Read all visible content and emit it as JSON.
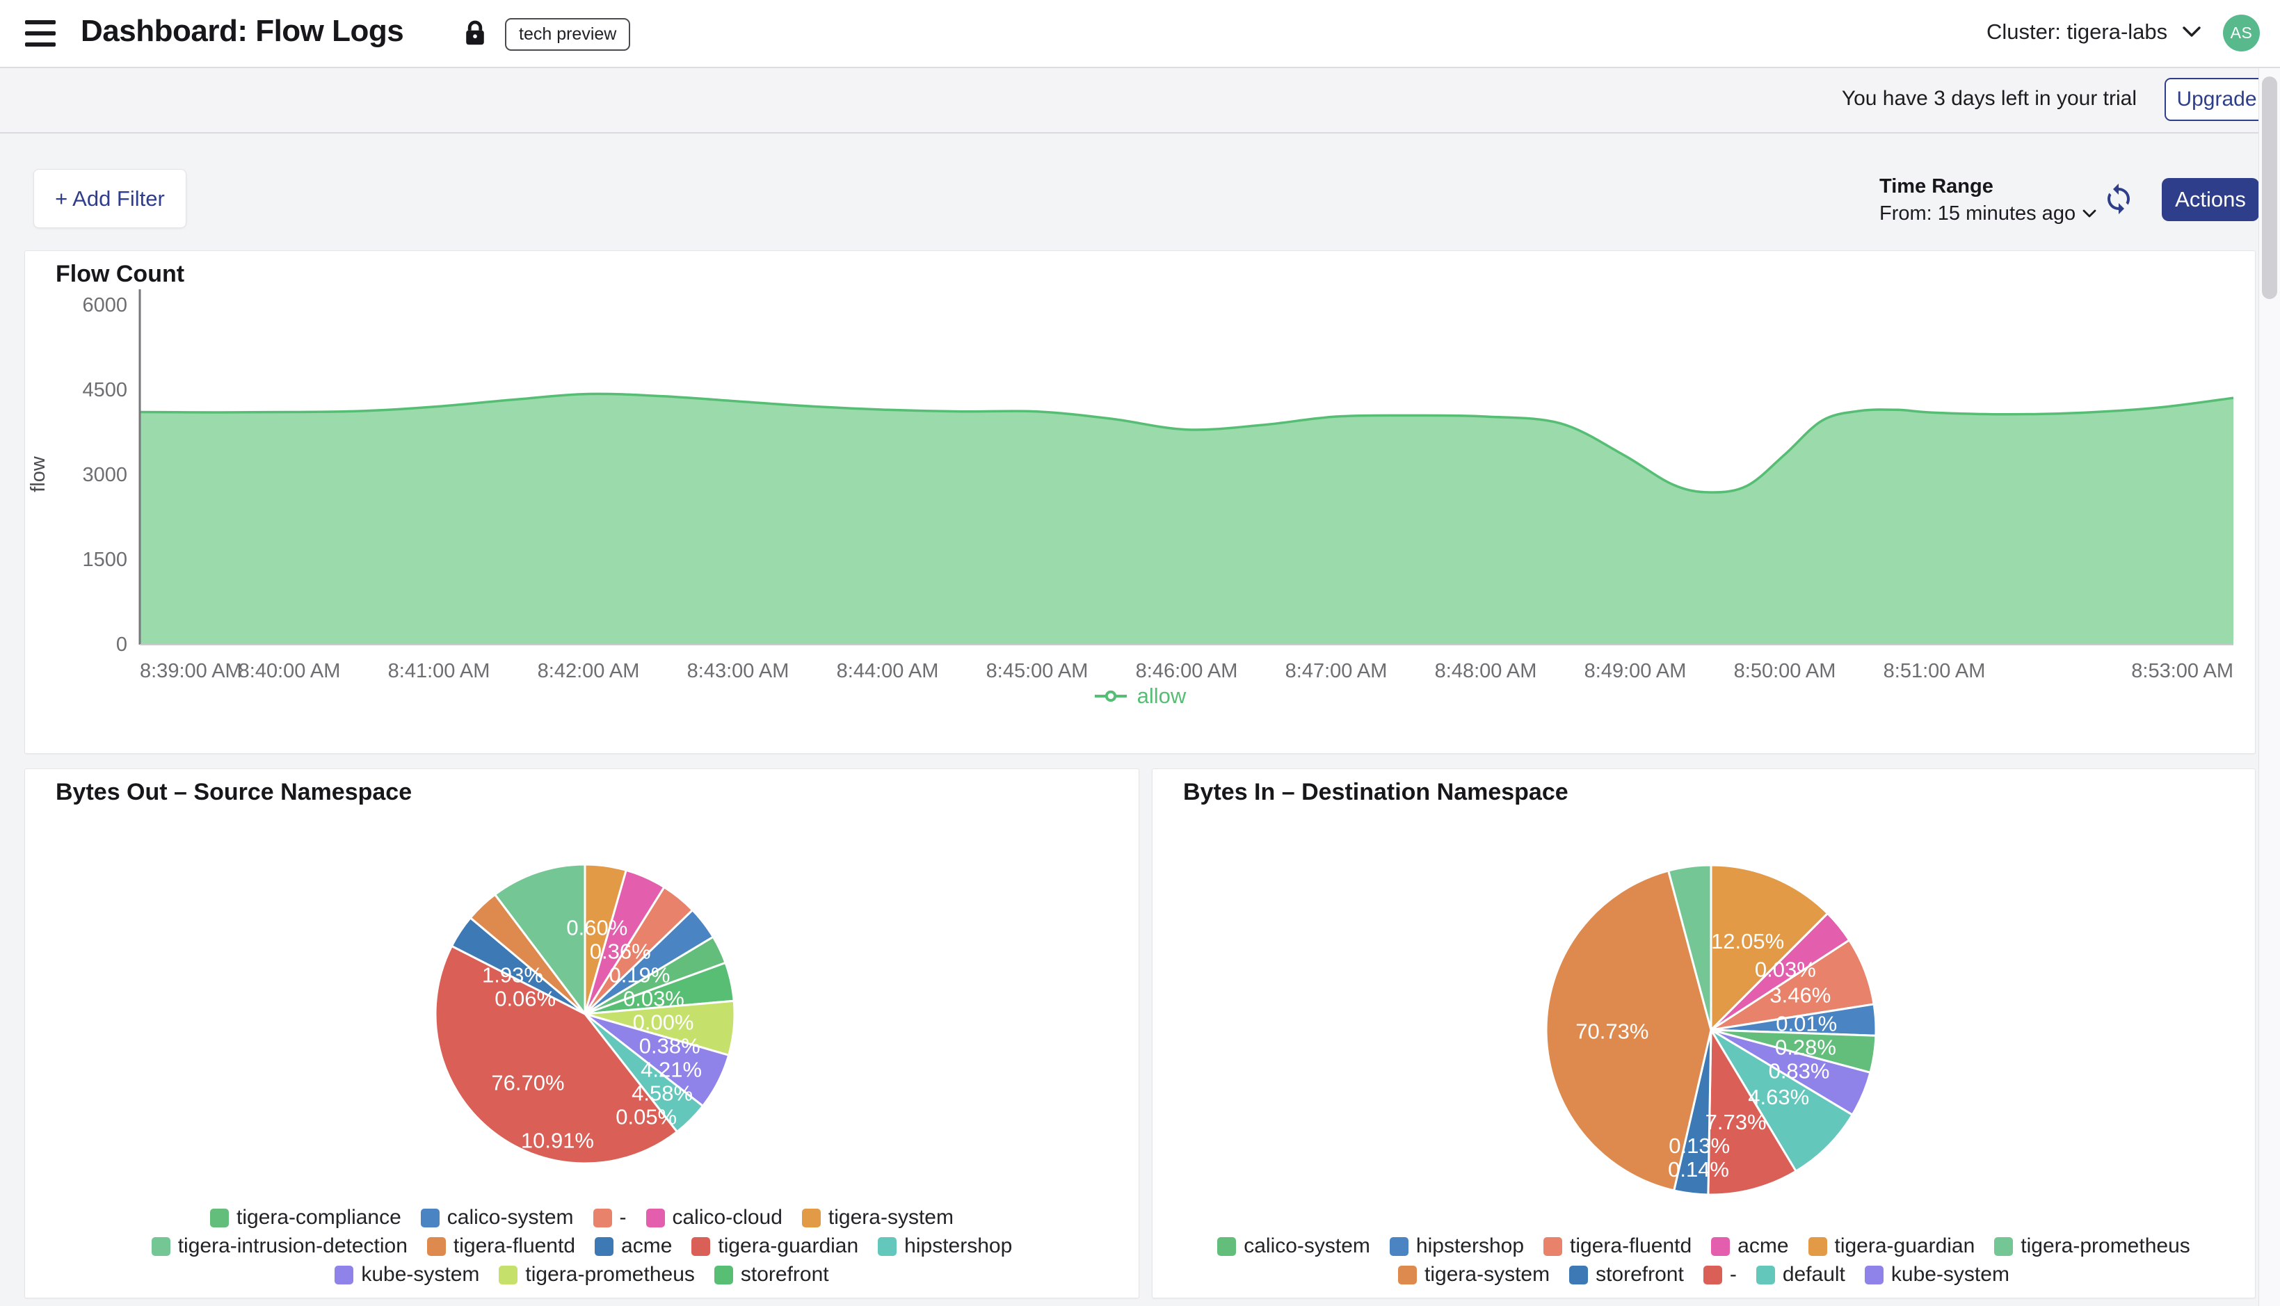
{
  "header": {
    "title": "Dashboard: Flow Logs",
    "badge": "tech preview",
    "cluster_label": "Cluster: tigera-labs",
    "avatar_initials": "AS"
  },
  "trial_banner": {
    "text": "You have 3 days left in your trial",
    "upgrade_label": "Upgrade"
  },
  "toolbar": {
    "add_filter_label": "+ Add Filter",
    "time_range_title": "Time Range",
    "time_range_value": "From: 15 minutes ago",
    "actions_label": "Actions"
  },
  "colors": {
    "accent_navy": "#2E3E8B",
    "avatar_green": "#57B98C",
    "area_fill": "#9BDAAB",
    "area_line": "#56BE74",
    "axis_text": "#6d6d72"
  },
  "chart_data": [
    {
      "id": "flow_count",
      "type": "area",
      "title": "Flow Count",
      "ylabel": "flow",
      "ylim": [
        0,
        6000
      ],
      "yticks": [
        0,
        1500,
        3000,
        4500,
        6000
      ],
      "grid": false,
      "legend_position": "bottom",
      "xticks": [
        {
          "t": 0,
          "label": "8:39:00 AM",
          "align": "start"
        },
        {
          "t": 60,
          "label": "8:40:00 AM",
          "align": "middle"
        },
        {
          "t": 120,
          "label": "8:41:00 AM",
          "align": "middle"
        },
        {
          "t": 180,
          "label": "8:42:00 AM",
          "align": "middle"
        },
        {
          "t": 240,
          "label": "8:43:00 AM",
          "align": "middle"
        },
        {
          "t": 300,
          "label": "8:44:00 AM",
          "align": "middle"
        },
        {
          "t": 360,
          "label": "8:45:00 AM",
          "align": "middle"
        },
        {
          "t": 420,
          "label": "8:46:00 AM",
          "align": "middle"
        },
        {
          "t": 480,
          "label": "8:47:00 AM",
          "align": "middle"
        },
        {
          "t": 540,
          "label": "8:48:00 AM",
          "align": "middle"
        },
        {
          "t": 600,
          "label": "8:49:00 AM",
          "align": "middle"
        },
        {
          "t": 660,
          "label": "8:50:00 AM",
          "align": "middle"
        },
        {
          "t": 720,
          "label": "8:51:00 AM",
          "align": "middle"
        },
        {
          "t": 840,
          "label": "8:53:00 AM",
          "align": "end"
        }
      ],
      "x_range_seconds": [
        0,
        840
      ],
      "series": [
        {
          "name": "allow",
          "color": "#56BE74",
          "fill": "#9BDAAB",
          "points": [
            [
              0,
              4100
            ],
            [
              30,
              4095
            ],
            [
              60,
              4100
            ],
            [
              90,
              4120
            ],
            [
              120,
              4200
            ],
            [
              150,
              4320
            ],
            [
              180,
              4420
            ],
            [
              210,
              4380
            ],
            [
              240,
              4290
            ],
            [
              270,
              4200
            ],
            [
              300,
              4140
            ],
            [
              330,
              4110
            ],
            [
              360,
              4110
            ],
            [
              390,
              3980
            ],
            [
              420,
              3790
            ],
            [
              450,
              3870
            ],
            [
              480,
              4020
            ],
            [
              510,
              4040
            ],
            [
              540,
              4020
            ],
            [
              570,
              3900
            ],
            [
              595,
              3350
            ],
            [
              615,
              2820
            ],
            [
              630,
              2680
            ],
            [
              645,
              2800
            ],
            [
              660,
              3350
            ],
            [
              675,
              3950
            ],
            [
              690,
              4120
            ],
            [
              705,
              4140
            ],
            [
              720,
              4090
            ],
            [
              750,
              4060
            ],
            [
              780,
              4090
            ],
            [
              810,
              4180
            ],
            [
              840,
              4350
            ]
          ]
        }
      ]
    },
    {
      "id": "bytes_out_source_namespace",
      "type": "pie",
      "title": "Bytes Out – Source Namespace",
      "slices": [
        {
          "name": "tigera-system",
          "value": 0.6,
          "color": "#E29A46",
          "display_angle": 16
        },
        {
          "name": "calico-cloud",
          "value": 0.36,
          "color": "#E35FAD",
          "display_angle": 16
        },
        {
          "name": "-",
          "value": 0.19,
          "color": "#E8826B",
          "display_angle": 14
        },
        {
          "name": "calico-system",
          "value": 0.03,
          "color": "#4A84C2",
          "display_angle": 13
        },
        {
          "name": "tigera-compliance",
          "value": 0.0,
          "color": "#62BE7A",
          "display_angle": 11
        },
        {
          "name": "storefront",
          "value": 0.38,
          "color": "#58BE74",
          "display_angle": 15
        },
        {
          "name": "tigera-prometheus",
          "value": 4.21,
          "color": "#C6E16B",
          "display_angle": 21
        },
        {
          "name": "kube-system",
          "value": 4.58,
          "color": "#8F83EA",
          "display_angle": 22
        },
        {
          "name": "hipstershop",
          "value": 0.05,
          "color": "#64C7BB",
          "display_angle": 14
        },
        {
          "name": "tigera-guardian",
          "value": 76.7,
          "color": "#D95F57",
          "display_angle": 155
        },
        {
          "name": "acme",
          "value": 1.93,
          "color": "#3D79B4",
          "display_angle": 13
        },
        {
          "name": "tigera-fluentd",
          "value": 0.06,
          "color": "#DE8A4F",
          "display_angle": 13
        },
        {
          "name": "tigera-intrusion-detection",
          "value": 10.91,
          "color": "#74C795",
          "display_angle": 37
        }
      ],
      "legend_rows": [
        [
          "tigera-compliance",
          "calico-system",
          "-",
          "calico-cloud",
          "tigera-system"
        ],
        [
          "tigera-intrusion-detection",
          "tigera-fluentd",
          "acme",
          "tigera-guardian",
          "hipstershop"
        ],
        [
          "kube-system",
          "tigera-prometheus",
          "storefront"
        ]
      ]
    },
    {
      "id": "bytes_in_destination_namespace",
      "type": "pie",
      "title": "Bytes In – Destination Namespace",
      "slices": [
        {
          "name": "tigera-guardian",
          "value": 12.05,
          "color": "#E29A46",
          "display_angle": 45
        },
        {
          "name": "acme",
          "value": 0.03,
          "color": "#E35FAD",
          "display_angle": 12
        },
        {
          "name": "tigera-fluentd",
          "value": 3.46,
          "color": "#E8826B",
          "display_angle": 24
        },
        {
          "name": "hipstershop",
          "value": 0.01,
          "color": "#4A84C2",
          "display_angle": 11
        },
        {
          "name": "calico-system",
          "value": 0.28,
          "color": "#62BE7A",
          "display_angle": 13
        },
        {
          "name": "kube-system",
          "value": 0.83,
          "color": "#8F83EA",
          "display_angle": 16
        },
        {
          "name": "default",
          "value": 4.63,
          "color": "#64C7BB",
          "display_angle": 28
        },
        {
          "name": "-",
          "value": 7.73,
          "color": "#D95F57",
          "display_angle": 32
        },
        {
          "name": "storefront",
          "value": 0.13,
          "color": "#3D79B4",
          "display_angle": 12
        },
        {
          "name": "tigera-system",
          "value": 70.73,
          "color": "#DE8A4F",
          "display_angle": 152
        },
        {
          "name": "tigera-prometheus",
          "value": 0.14,
          "color": "#74C795",
          "display_angle": 15
        }
      ],
      "legend_rows": [
        [
          "calico-system",
          "hipstershop",
          "tigera-fluentd",
          "acme",
          "tigera-guardian",
          "tigera-prometheus"
        ],
        [
          "tigera-system",
          "storefront",
          "-",
          "default",
          "kube-system"
        ]
      ]
    }
  ]
}
